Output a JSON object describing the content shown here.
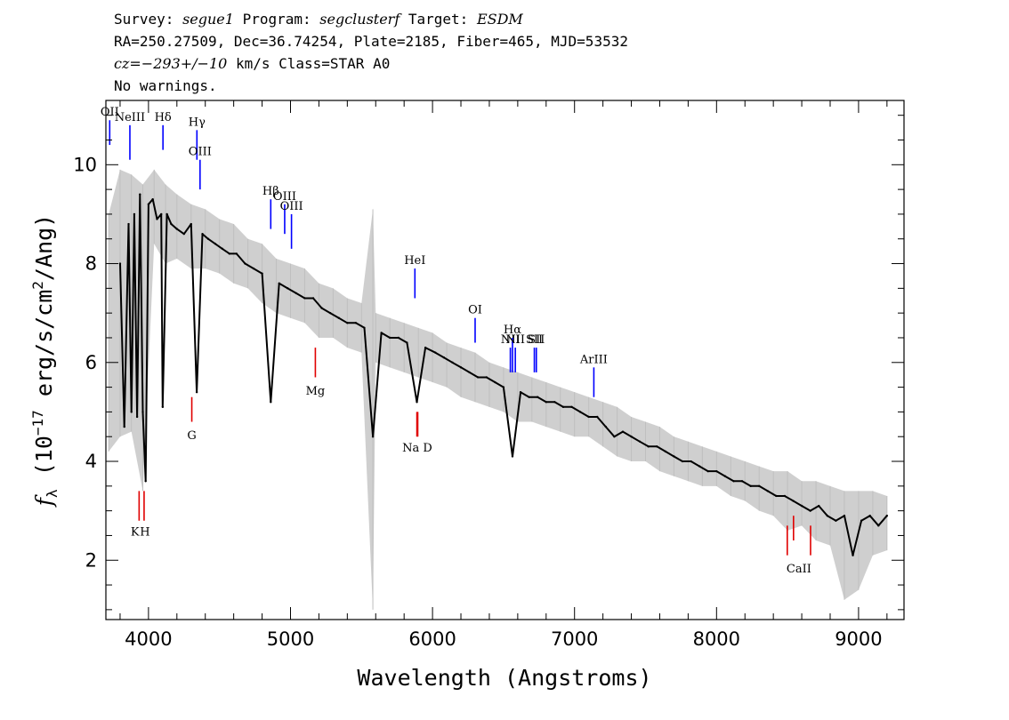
{
  "header": {
    "line1": [
      {
        "text": "Survey: ",
        "italic": false
      },
      {
        "text": "segue1",
        "italic": true
      },
      {
        "text": " Program: ",
        "italic": false
      },
      {
        "text": "segclusterf",
        "italic": true
      },
      {
        "text": " Target: ",
        "italic": false
      },
      {
        "text": "ESDM",
        "italic": true
      }
    ],
    "line2": "RA=250.27509, Dec=36.74254, Plate=2185, Fiber=465, MJD=53532",
    "line3": [
      {
        "text": "cz=−293+/−10",
        "italic": true
      },
      {
        "text": " km/s Class=STAR A0",
        "italic": false
      }
    ],
    "line4": "No warnings."
  },
  "chart_data": {
    "type": "line",
    "title": "",
    "xlabel": "Wavelength (Angstroms)",
    "ylabel_prefix": "f",
    "ylabel_sub": "λ",
    "ylabel_open": " (10",
    "ylabel_exp": "−17",
    "ylabel_mid": " erg/s/cm",
    "ylabel_exp2": "2",
    "ylabel_tail": "/Ang)",
    "xlim": [
      3700,
      9320
    ],
    "ylim": [
      0.8,
      11.3
    ],
    "xticks": [
      4000,
      5000,
      6000,
      7000,
      8000,
      9000
    ],
    "xtick_labels": [
      "4000",
      "5000",
      "6000",
      "7000",
      "8000",
      "9000"
    ],
    "yticks": [
      2,
      4,
      6,
      8,
      10
    ],
    "ytick_labels": [
      "2",
      "4",
      "6",
      "8",
      "10"
    ],
    "grid": false,
    "colors": {
      "flux": "#000000",
      "error": "#bfbfbf",
      "emission": "#0000ff",
      "absorption": "#e00000"
    },
    "series": [
      {
        "role": "flux",
        "x": [
          3800,
          3830,
          3860,
          3880,
          3900,
          3920,
          3940,
          3960,
          3980,
          4000,
          4030,
          4060,
          4090,
          4100,
          4130,
          4160,
          4200,
          4250,
          4300,
          4340,
          4380,
          4420,
          4470,
          4520,
          4570,
          4620,
          4680,
          4740,
          4800,
          4861,
          4920,
          4980,
          5040,
          5100,
          5160,
          5220,
          5280,
          5340,
          5400,
          5460,
          5520,
          5580,
          5640,
          5700,
          5760,
          5820,
          5890,
          5950,
          6020,
          6080,
          6140,
          6200,
          6260,
          6320,
          6380,
          6440,
          6500,
          6563,
          6620,
          6680,
          6740,
          6800,
          6860,
          6920,
          6980,
          7040,
          7100,
          7160,
          7220,
          7280,
          7340,
          7400,
          7460,
          7520,
          7580,
          7640,
          7700,
          7760,
          7820,
          7880,
          7940,
          8000,
          8060,
          8120,
          8180,
          8240,
          8300,
          8360,
          8420,
          8480,
          8540,
          8600,
          8660,
          8720,
          8780,
          8840,
          8900,
          8960,
          9020,
          9080,
          9140,
          9200
        ],
        "y": [
          8.0,
          4.7,
          8.8,
          5.0,
          9.0,
          4.9,
          9.4,
          5.0,
          3.6,
          9.2,
          9.3,
          8.9,
          9.0,
          5.1,
          9.0,
          8.8,
          8.7,
          8.6,
          8.8,
          5.4,
          8.6,
          8.5,
          8.4,
          8.3,
          8.2,
          8.2,
          8.0,
          7.9,
          7.8,
          5.2,
          7.6,
          7.5,
          7.4,
          7.3,
          7.3,
          7.1,
          7.0,
          6.9,
          6.8,
          6.8,
          6.7,
          4.5,
          6.6,
          6.5,
          6.5,
          6.4,
          5.2,
          6.3,
          6.2,
          6.1,
          6.0,
          5.9,
          5.8,
          5.7,
          5.7,
          5.6,
          5.5,
          4.1,
          5.4,
          5.3,
          5.3,
          5.2,
          5.2,
          5.1,
          5.1,
          5.0,
          4.9,
          4.9,
          4.7,
          4.5,
          4.6,
          4.5,
          4.4,
          4.3,
          4.3,
          4.2,
          4.1,
          4.0,
          4.0,
          3.9,
          3.8,
          3.8,
          3.7,
          3.6,
          3.6,
          3.5,
          3.5,
          3.4,
          3.3,
          3.3,
          3.2,
          3.1,
          3.0,
          3.1,
          2.9,
          2.8,
          2.9,
          2.1,
          2.8,
          2.9,
          2.7,
          2.9
        ]
      },
      {
        "role": "error",
        "x": [
          3720,
          3800,
          3880,
          3960,
          4040,
          4120,
          4200,
          4300,
          4400,
          4500,
          4600,
          4700,
          4800,
          4900,
          5000,
          5100,
          5200,
          5300,
          5400,
          5500,
          5580,
          5600,
          5700,
          5800,
          5900,
          6000,
          6100,
          6200,
          6300,
          6400,
          6500,
          6600,
          6700,
          6800,
          6900,
          7000,
          7100,
          7200,
          7300,
          7400,
          7500,
          7600,
          7700,
          7800,
          7900,
          8000,
          8100,
          8200,
          8300,
          8400,
          8500,
          8600,
          8700,
          8800,
          8900,
          9000,
          9100,
          9200
        ],
        "lo": [
          4.2,
          4.5,
          4.6,
          3.4,
          8.4,
          8.0,
          8.1,
          7.9,
          7.9,
          7.8,
          7.6,
          7.5,
          7.2,
          7.0,
          6.9,
          6.8,
          6.5,
          6.5,
          6.3,
          6.2,
          1.0,
          6.0,
          5.9,
          5.8,
          5.7,
          5.6,
          5.5,
          5.3,
          5.2,
          5.1,
          5.0,
          4.8,
          4.8,
          4.7,
          4.6,
          4.5,
          4.5,
          4.3,
          4.1,
          4.0,
          4.0,
          3.8,
          3.7,
          3.6,
          3.5,
          3.5,
          3.3,
          3.2,
          3.0,
          2.9,
          2.6,
          2.7,
          2.4,
          2.3,
          1.2,
          1.4,
          2.1,
          2.2
        ],
        "hi": [
          9.0,
          9.9,
          9.8,
          9.6,
          9.9,
          9.6,
          9.4,
          9.2,
          9.1,
          8.9,
          8.8,
          8.5,
          8.4,
          8.1,
          8.0,
          7.9,
          7.6,
          7.5,
          7.3,
          7.2,
          9.1,
          7.0,
          6.9,
          6.8,
          6.7,
          6.6,
          6.4,
          6.3,
          6.2,
          6.0,
          5.9,
          5.8,
          5.7,
          5.6,
          5.5,
          5.4,
          5.3,
          5.2,
          5.1,
          4.9,
          4.8,
          4.7,
          4.5,
          4.4,
          4.3,
          4.2,
          4.1,
          4.0,
          3.9,
          3.8,
          3.8,
          3.6,
          3.6,
          3.5,
          3.4,
          3.4,
          3.4,
          3.3
        ]
      }
    ],
    "emission_lines": [
      {
        "label": "OII",
        "x": 3727,
        "y": [
          10.4,
          10.9
        ]
      },
      {
        "label": "NeIII",
        "x": 3869,
        "y": [
          10.1,
          10.8
        ]
      },
      {
        "label": "Hδ",
        "x": 4102,
        "y": [
          10.3,
          10.8
        ]
      },
      {
        "label": "Hγ",
        "x": 4341,
        "y": [
          10.1,
          10.7
        ]
      },
      {
        "label": "OIII",
        "x": 4363,
        "y": [
          9.5,
          10.1
        ]
      },
      {
        "label": "Hβ",
        "x": 4861,
        "y": [
          8.7,
          9.3
        ]
      },
      {
        "label": "OIII",
        "x": 4959,
        "y": [
          8.6,
          9.2
        ]
      },
      {
        "label": "OIII",
        "x": 5007,
        "y": [
          8.3,
          9.0
        ]
      },
      {
        "label": "HeI",
        "x": 5876,
        "y": [
          7.3,
          7.9
        ]
      },
      {
        "label": "OI",
        "x": 6300,
        "y": [
          6.4,
          6.9
        ]
      },
      {
        "label": "NII",
        "x": 6548,
        "y": [
          5.8,
          6.3
        ]
      },
      {
        "label": "Hα",
        "x": 6563,
        "y": [
          5.8,
          6.5
        ]
      },
      {
        "label": "NII",
        "x": 6583,
        "y": [
          5.8,
          6.3
        ]
      },
      {
        "label": "SII",
        "x": 6717,
        "y": [
          5.8,
          6.3
        ]
      },
      {
        "label": "SII",
        "x": 6731,
        "y": [
          5.8,
          6.3
        ]
      },
      {
        "label": "ArIII",
        "x": 7136,
        "y": [
          5.3,
          5.9
        ]
      }
    ],
    "absorption_lines": [
      {
        "x": 3934,
        "y": [
          2.8,
          3.4
        ]
      },
      {
        "x": 3969,
        "y": [
          2.8,
          3.4
        ]
      },
      {
        "x": 4305,
        "y": [
          4.8,
          5.3
        ]
      },
      {
        "x": 5175,
        "y": [
          5.7,
          6.3
        ]
      },
      {
        "x": 5890,
        "y": [
          4.5,
          5.0
        ]
      },
      {
        "x": 5896,
        "y": [
          4.5,
          5.0
        ]
      },
      {
        "x": 8498,
        "y": [
          2.1,
          2.7
        ]
      },
      {
        "x": 8542,
        "y": [
          2.4,
          2.9
        ]
      },
      {
        "x": 8662,
        "y": [
          2.1,
          2.7
        ]
      }
    ],
    "absorption_labels": [
      {
        "label": "K",
        "x": 3905,
        "y": 2.5
      },
      {
        "label": "H",
        "x": 3975,
        "y": 2.5
      },
      {
        "label": "G",
        "x": 4305,
        "y": 4.45
      },
      {
        "label": "Mg",
        "x": 5175,
        "y": 5.35
      },
      {
        "label": "Na D",
        "x": 5893,
        "y": 4.2
      },
      {
        "label": "CaII",
        "x": 8580,
        "y": 1.75
      }
    ]
  }
}
